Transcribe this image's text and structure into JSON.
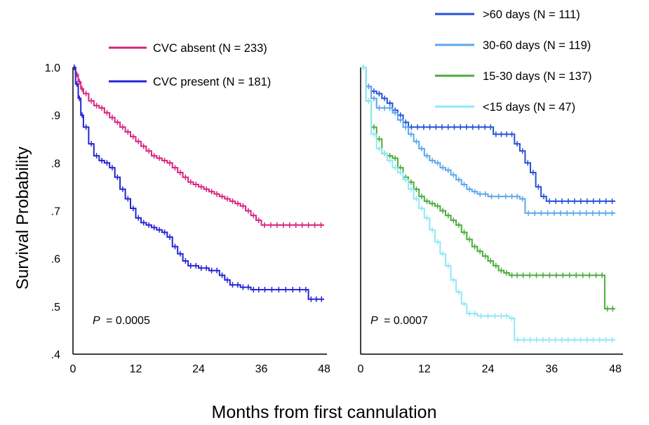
{
  "chart_data": [
    {
      "type": "line",
      "subtype": "kaplan-meier",
      "ylabel": "Survival Probability",
      "xlabel": "Months from first cannulation",
      "xlim": [
        0,
        48
      ],
      "ylim": [
        0.4,
        1.0
      ],
      "xticks": [
        "0",
        "12",
        "24",
        "36",
        "48"
      ],
      "yticks": [
        "1.0",
        ".9",
        ".8",
        ".7",
        ".6",
        ".5",
        ".4"
      ],
      "legend_position": "top",
      "annotation": {
        "p_italic": "P",
        "p_value": "= 0.0005"
      },
      "series": [
        {
          "name": "CVC absent (N = 233)",
          "color": "#d6247f",
          "points": [
            [
              0,
              1.0
            ],
            [
              0.5,
              0.985
            ],
            [
              1,
              0.97
            ],
            [
              1.5,
              0.955
            ],
            [
              2,
              0.945
            ],
            [
              3,
              0.93
            ],
            [
              4,
              0.92
            ],
            [
              5,
              0.915
            ],
            [
              6,
              0.905
            ],
            [
              7,
              0.895
            ],
            [
              8,
              0.885
            ],
            [
              9,
              0.875
            ],
            [
              10,
              0.865
            ],
            [
              11,
              0.855
            ],
            [
              12,
              0.845
            ],
            [
              13,
              0.835
            ],
            [
              14,
              0.825
            ],
            [
              15,
              0.815
            ],
            [
              16,
              0.81
            ],
            [
              17,
              0.805
            ],
            [
              18,
              0.8
            ],
            [
              19,
              0.79
            ],
            [
              20,
              0.78
            ],
            [
              21,
              0.77
            ],
            [
              22,
              0.76
            ],
            [
              23,
              0.755
            ],
            [
              24,
              0.75
            ],
            [
              25,
              0.745
            ],
            [
              26,
              0.74
            ],
            [
              27,
              0.735
            ],
            [
              28,
              0.73
            ],
            [
              29,
              0.725
            ],
            [
              30,
              0.72
            ],
            [
              31,
              0.715
            ],
            [
              32,
              0.71
            ],
            [
              33,
              0.7
            ],
            [
              34,
              0.69
            ],
            [
              35,
              0.68
            ],
            [
              36,
              0.67
            ],
            [
              48,
              0.67
            ]
          ]
        },
        {
          "name": "CVC present (N = 181)",
          "color": "#2424d6",
          "points": [
            [
              0,
              1.0
            ],
            [
              0.5,
              0.965
            ],
            [
              1,
              0.935
            ],
            [
              1.5,
              0.9
            ],
            [
              2,
              0.875
            ],
            [
              3,
              0.84
            ],
            [
              4,
              0.815
            ],
            [
              5,
              0.805
            ],
            [
              6,
              0.8
            ],
            [
              7,
              0.79
            ],
            [
              8,
              0.77
            ],
            [
              9,
              0.745
            ],
            [
              10,
              0.725
            ],
            [
              11,
              0.705
            ],
            [
              12,
              0.685
            ],
            [
              13,
              0.675
            ],
            [
              14,
              0.67
            ],
            [
              15,
              0.665
            ],
            [
              16,
              0.66
            ],
            [
              17,
              0.655
            ],
            [
              18,
              0.645
            ],
            [
              19,
              0.625
            ],
            [
              20,
              0.61
            ],
            [
              21,
              0.595
            ],
            [
              22,
              0.585
            ],
            [
              24,
              0.58
            ],
            [
              26,
              0.575
            ],
            [
              28,
              0.565
            ],
            [
              29,
              0.555
            ],
            [
              30,
              0.545
            ],
            [
              32,
              0.54
            ],
            [
              34,
              0.535
            ],
            [
              36,
              0.535
            ],
            [
              40,
              0.535
            ],
            [
              44,
              0.535
            ],
            [
              45,
              0.515
            ],
            [
              48,
              0.515
            ]
          ]
        }
      ]
    },
    {
      "type": "line",
      "subtype": "kaplan-meier",
      "xlim": [
        0,
        48
      ],
      "ylim": [
        0.4,
        1.0
      ],
      "xticks": [
        "0",
        "12",
        "24",
        "36",
        "48"
      ],
      "legend_position": "top-right",
      "annotation": {
        "p_italic": "P",
        "p_value": "= 0.0007"
      },
      "series": [
        {
          "name": ">60 days (N = 111)",
          "color": "#2450d8",
          "points": [
            [
              0,
              1.0
            ],
            [
              1,
              0.96
            ],
            [
              2,
              0.95
            ],
            [
              3,
              0.945
            ],
            [
              4,
              0.935
            ],
            [
              5,
              0.925
            ],
            [
              6,
              0.91
            ],
            [
              7,
              0.9
            ],
            [
              8,
              0.885
            ],
            [
              9,
              0.875
            ],
            [
              24,
              0.875
            ],
            [
              25,
              0.86
            ],
            [
              28,
              0.86
            ],
            [
              29,
              0.84
            ],
            [
              30,
              0.825
            ],
            [
              31,
              0.8
            ],
            [
              32,
              0.78
            ],
            [
              33,
              0.75
            ],
            [
              34,
              0.73
            ],
            [
              35,
              0.72
            ],
            [
              48,
              0.72
            ]
          ]
        },
        {
          "name": "30-60 days (N = 119)",
          "color": "#5aa7ea",
          "points": [
            [
              0,
              1.0
            ],
            [
              1,
              0.96
            ],
            [
              2,
              0.935
            ],
            [
              3,
              0.915
            ],
            [
              5,
              0.915
            ],
            [
              6,
              0.905
            ],
            [
              7,
              0.89
            ],
            [
              8,
              0.875
            ],
            [
              9,
              0.86
            ],
            [
              10,
              0.845
            ],
            [
              11,
              0.83
            ],
            [
              12,
              0.815
            ],
            [
              13,
              0.805
            ],
            [
              14,
              0.8
            ],
            [
              15,
              0.79
            ],
            [
              16,
              0.785
            ],
            [
              17,
              0.775
            ],
            [
              18,
              0.765
            ],
            [
              19,
              0.755
            ],
            [
              20,
              0.745
            ],
            [
              21,
              0.74
            ],
            [
              22,
              0.735
            ],
            [
              24,
              0.73
            ],
            [
              28,
              0.73
            ],
            [
              30,
              0.725
            ],
            [
              31,
              0.695
            ],
            [
              48,
              0.695
            ]
          ]
        },
        {
          "name": "15-30 days (N = 137)",
          "color": "#4aab3b",
          "points": [
            [
              0,
              1.0
            ],
            [
              1,
              0.93
            ],
            [
              2,
              0.875
            ],
            [
              3,
              0.85
            ],
            [
              4,
              0.82
            ],
            [
              5,
              0.815
            ],
            [
              6,
              0.81
            ],
            [
              7,
              0.79
            ],
            [
              8,
              0.77
            ],
            [
              9,
              0.76
            ],
            [
              10,
              0.745
            ],
            [
              11,
              0.73
            ],
            [
              12,
              0.72
            ],
            [
              13,
              0.715
            ],
            [
              14,
              0.71
            ],
            [
              15,
              0.7
            ],
            [
              16,
              0.69
            ],
            [
              17,
              0.68
            ],
            [
              18,
              0.67
            ],
            [
              19,
              0.655
            ],
            [
              20,
              0.64
            ],
            [
              21,
              0.625
            ],
            [
              22,
              0.615
            ],
            [
              23,
              0.605
            ],
            [
              24,
              0.595
            ],
            [
              25,
              0.585
            ],
            [
              26,
              0.575
            ],
            [
              27,
              0.57
            ],
            [
              28,
              0.565
            ],
            [
              30,
              0.565
            ],
            [
              40,
              0.565
            ],
            [
              45,
              0.565
            ],
            [
              46,
              0.495
            ],
            [
              48,
              0.495
            ]
          ]
        },
        {
          "name": "<15 days (N = 47)",
          "color": "#8fe8f5",
          "points": [
            [
              0,
              1.0
            ],
            [
              1,
              0.93
            ],
            [
              2,
              0.86
            ],
            [
              3,
              0.83
            ],
            [
              4,
              0.82
            ],
            [
              5,
              0.805
            ],
            [
              6,
              0.79
            ],
            [
              7,
              0.78
            ],
            [
              8,
              0.765
            ],
            [
              9,
              0.745
            ],
            [
              10,
              0.725
            ],
            [
              11,
              0.705
            ],
            [
              12,
              0.685
            ],
            [
              13,
              0.66
            ],
            [
              14,
              0.635
            ],
            [
              15,
              0.61
            ],
            [
              16,
              0.585
            ],
            [
              17,
              0.555
            ],
            [
              18,
              0.53
            ],
            [
              19,
              0.505
            ],
            [
              20,
              0.485
            ],
            [
              22,
              0.48
            ],
            [
              26,
              0.48
            ],
            [
              28,
              0.475
            ],
            [
              29,
              0.43
            ],
            [
              48,
              0.43
            ]
          ]
        }
      ]
    }
  ]
}
